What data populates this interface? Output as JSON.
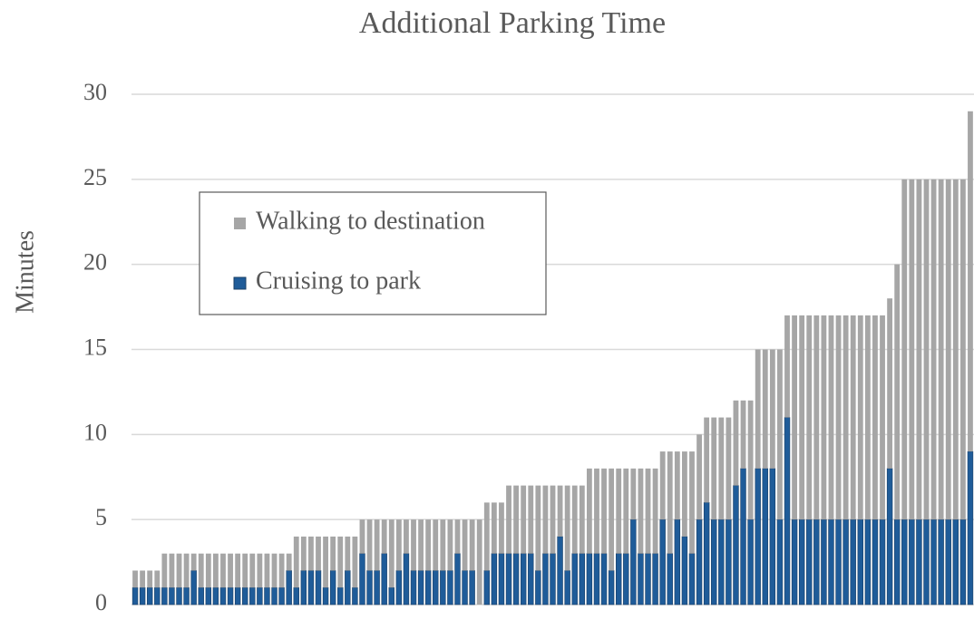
{
  "chart_data": {
    "type": "stacked_bar",
    "title": "Additional Parking Time",
    "y_label": "Minutes",
    "ylim": [
      0,
      30
    ],
    "yticks": [
      0,
      5,
      10,
      15,
      20,
      25,
      30
    ],
    "grid": true,
    "series": [
      {
        "name": "Cruising to park",
        "color": "#1f5c99",
        "values": [
          1,
          1,
          1,
          1,
          1,
          1,
          1,
          1,
          2,
          1,
          1,
          1,
          1,
          1,
          1,
          1,
          1,
          1,
          1,
          1,
          1,
          2,
          1,
          2,
          2,
          2,
          1,
          2,
          1,
          2,
          1,
          3,
          2,
          2,
          3,
          1,
          2,
          3,
          2,
          2,
          2,
          2,
          2,
          2,
          3,
          2,
          2,
          0,
          2,
          3,
          3,
          3,
          3,
          3,
          3,
          2,
          3,
          3,
          4,
          2,
          3,
          3,
          3,
          3,
          3,
          2,
          3,
          3,
          5,
          3,
          3,
          3,
          5,
          3,
          5,
          4,
          3,
          5,
          6,
          5,
          5,
          5,
          7,
          8,
          5,
          8,
          8,
          8,
          5,
          11,
          5,
          5,
          5,
          5,
          5,
          5,
          5,
          5,
          5,
          5,
          5,
          5,
          5,
          8,
          5,
          5,
          5,
          5,
          5,
          5,
          5,
          5,
          5,
          5,
          9
        ]
      },
      {
        "name": "Walking to destination",
        "color": "#a6a6a6",
        "values": [
          1,
          1,
          1,
          1,
          2,
          2,
          2,
          2,
          1,
          2,
          2,
          2,
          2,
          2,
          2,
          2,
          2,
          2,
          2,
          2,
          2,
          1,
          3,
          2,
          2,
          2,
          3,
          2,
          3,
          2,
          3,
          2,
          3,
          3,
          2,
          4,
          3,
          2,
          3,
          3,
          3,
          3,
          3,
          3,
          2,
          3,
          3,
          5,
          4,
          3,
          3,
          4,
          4,
          4,
          4,
          5,
          4,
          4,
          3,
          5,
          4,
          4,
          5,
          5,
          5,
          6,
          5,
          5,
          3,
          5,
          5,
          5,
          4,
          6,
          4,
          5,
          6,
          5,
          5,
          6,
          6,
          6,
          5,
          4,
          7,
          7,
          7,
          7,
          10,
          6,
          12,
          12,
          12,
          12,
          12,
          12,
          12,
          12,
          12,
          12,
          12,
          12,
          12,
          10,
          15,
          20,
          20,
          20,
          20,
          20,
          20,
          20,
          20,
          20,
          20
        ]
      }
    ]
  }
}
